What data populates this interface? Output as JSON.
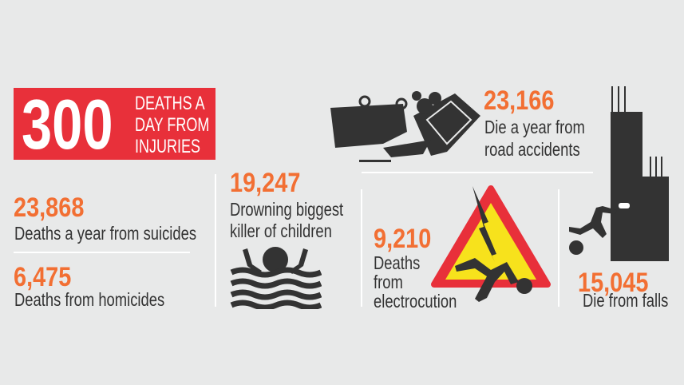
{
  "header": {
    "number": "300",
    "lines": [
      "DEATHS A",
      "DAY FROM",
      "INJURIES"
    ]
  },
  "suicides": {
    "value": "23,868",
    "label": "Deaths a year from suicides"
  },
  "homicides": {
    "value": "6,475",
    "label": "Deaths from homicides"
  },
  "drowning": {
    "value": "19,247",
    "lines": [
      "Drowning biggest",
      "killer of children"
    ]
  },
  "road": {
    "value": "23,166",
    "lines": [
      "Die a year from",
      "road accidents"
    ]
  },
  "electrocution": {
    "value": "9,210",
    "lines": [
      "Deaths",
      "from",
      "electrocution"
    ]
  },
  "falls": {
    "value": "15,045",
    "label": "Die from falls"
  },
  "colors": {
    "background": "#e8e9e9",
    "red": "#e8303a",
    "orange": "#f26f33",
    "text": "#333333",
    "warning_yellow": "#f7e21c"
  }
}
